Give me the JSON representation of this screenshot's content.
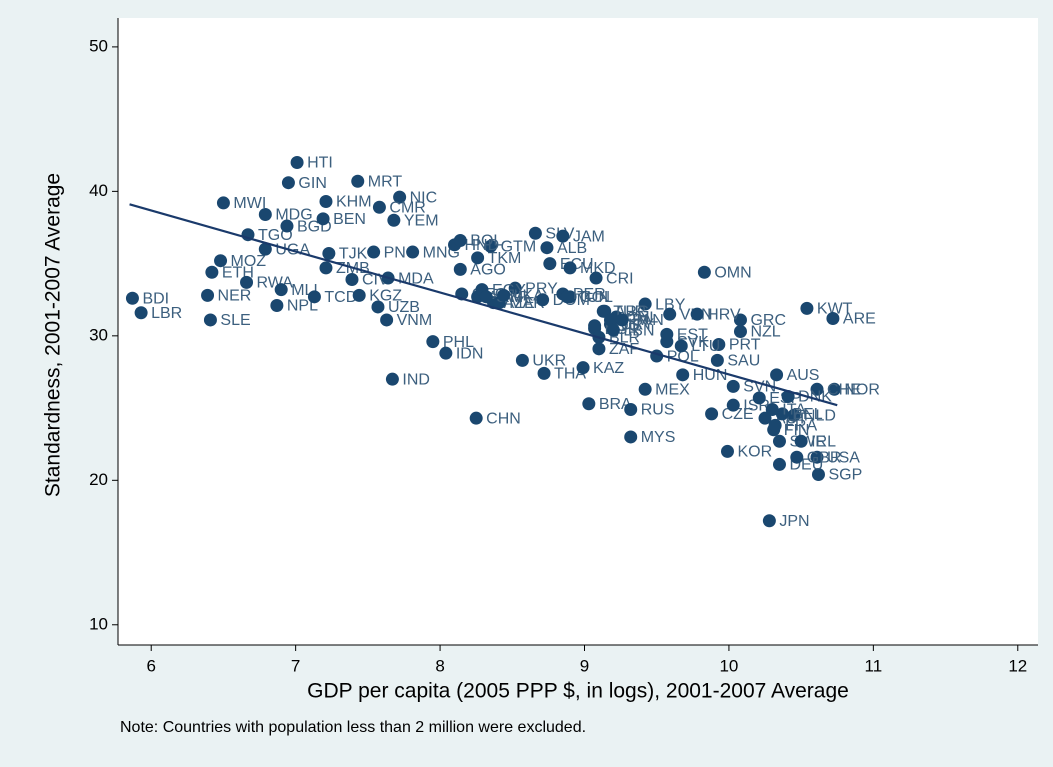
{
  "chart_data": {
    "type": "scatter",
    "xlabel": "GDP per capita (2005 PPP $, in logs), 2001-2007 Average",
    "ylabel": "Standardness, 2001-2007 Average",
    "note": "Note: Countries with population less than 2 million were excluded.",
    "xlim": [
      5.77,
      12.14
    ],
    "ylim": [
      8.6,
      52
    ],
    "xticks": [
      6,
      7,
      8,
      9,
      10,
      11,
      12
    ],
    "yticks": [
      10,
      20,
      30,
      40,
      50
    ],
    "color": "#1a476f",
    "line_color": "#1a3a6b",
    "point_labels": [
      "BDI",
      "LBR",
      "NER",
      "SLE",
      "ETH",
      "MOZ",
      "MWI",
      "TGO",
      "RWA",
      "MLI",
      "NPL",
      "MDG",
      "UGA",
      "BGD",
      "GIN",
      "HTI",
      "KHM",
      "MRT",
      "NIC",
      "YEM",
      "BEN",
      "TJK",
      "TCD",
      "KGZ",
      "CIV",
      "ZMB",
      "UZB",
      "VNM",
      "MDA",
      "PNG",
      "MNG",
      "CMR",
      "IND",
      "PHL",
      "IDN",
      "CHN",
      "AGO",
      "AZE",
      "TKM",
      "SLV",
      "JAM",
      "ALB",
      "ECU",
      "MKD",
      "CRI",
      "UKR",
      "THA",
      "KAZ",
      "BRA",
      "RUS",
      "MYS",
      "MEX",
      "LBY",
      "VEN",
      "POL",
      "HUN",
      "CZE",
      "OMN",
      "GRC",
      "NZL",
      "PRT",
      "SAU",
      "KOR",
      "JPN",
      "AUS",
      "ISR",
      "SVN",
      "ESP",
      "KWT",
      "ARE",
      "NOR",
      "SGP",
      "USA",
      "DEU",
      "GBR",
      "CHE",
      "FIN",
      "SWE",
      "IRL",
      "NLD",
      "DNK",
      "AUT",
      "FRA",
      "BEL",
      "ITA",
      "GTM",
      "HND",
      "BOL",
      "GEO",
      "ARM",
      "PRY",
      "MAR",
      "EGY",
      "SYR",
      "LKA",
      "DOM",
      "COL",
      "PER",
      "TUN",
      "ARG",
      "CHL",
      "URY",
      "TUR",
      "BGR",
      "ROU",
      "BLR",
      "ZAF",
      "IRN",
      "LBN",
      "PAN",
      "HRV",
      "SVK",
      "EST",
      "LTU"
    ],
    "x": [
      5.87,
      5.93,
      6.39,
      6.41,
      6.42,
      6.48,
      6.5,
      6.67,
      6.66,
      6.9,
      6.87,
      6.79,
      6.79,
      6.94,
      6.95,
      7.01,
      7.21,
      7.43,
      7.72,
      7.68,
      7.19,
      7.23,
      7.13,
      7.44,
      7.39,
      7.21,
      7.57,
      7.63,
      7.64,
      7.54,
      7.81,
      7.58,
      7.67,
      7.95,
      8.04,
      8.25,
      8.14,
      8.37,
      8.26,
      8.66,
      8.85,
      8.74,
      8.76,
      8.9,
      9.08,
      8.57,
      8.72,
      8.99,
      9.03,
      9.32,
      9.32,
      9.42,
      9.42,
      9.59,
      9.5,
      9.68,
      9.88,
      9.83,
      10.08,
      10.08,
      9.93,
      9.92,
      9.99,
      10.28,
      10.33,
      10.03,
      10.03,
      10.21,
      10.54,
      10.72,
      10.73,
      10.62,
      10.61,
      10.35,
      10.47,
      10.61,
      10.31,
      10.35,
      10.5,
      10.45,
      10.41,
      10.25,
      10.32,
      10.37,
      10.3,
      8.35,
      8.1,
      8.14,
      8.15,
      8.26,
      8.52,
      8.41,
      8.29,
      8.32,
      8.44,
      8.71,
      8.9,
      8.85,
      8.88,
      9.14,
      9.22,
      9.18,
      9.13,
      9.07,
      9.07,
      9.1,
      9.1,
      9.18,
      9.2,
      9.26,
      9.78,
      9.57,
      9.57,
      9.67
    ],
    "values": [
      32.6,
      31.6,
      32.8,
      31.1,
      34.4,
      35.2,
      39.2,
      37.0,
      33.7,
      33.2,
      32.1,
      38.4,
      36.0,
      37.6,
      40.6,
      42.0,
      39.3,
      40.7,
      39.6,
      38.0,
      38.1,
      35.7,
      32.7,
      32.8,
      33.9,
      34.7,
      32.0,
      31.1,
      34.0,
      35.8,
      35.8,
      38.9,
      27.0,
      29.6,
      28.8,
      24.3,
      34.6,
      32.3,
      35.4,
      37.1,
      36.9,
      36.1,
      35.0,
      34.7,
      34.0,
      28.3,
      27.4,
      27.8,
      25.3,
      24.9,
      23.0,
      26.3,
      32.2,
      31.5,
      28.6,
      27.3,
      24.6,
      34.4,
      31.1,
      30.3,
      29.4,
      28.3,
      22.0,
      17.2,
      27.3,
      25.2,
      26.5,
      25.7,
      31.9,
      31.2,
      26.3,
      20.4,
      21.6,
      21.1,
      21.6,
      26.3,
      23.5,
      22.7,
      22.7,
      24.5,
      25.8,
      24.3,
      23.8,
      24.6,
      24.9,
      36.2,
      36.3,
      36.6,
      32.9,
      32.7,
      33.3,
      32.3,
      33.2,
      32.7,
      32.8,
      32.5,
      32.7,
      32.9,
      32.7,
      31.7,
      31.3,
      30.8,
      31.7,
      30.5,
      30.7,
      29.9,
      29.1,
      31.1,
      30.4,
      31.1,
      31.5,
      29.6,
      30.1,
      29.3
    ],
    "fit_x": [
      5.85,
      10.75
    ],
    "fit_y": [
      39.1,
      25.2
    ]
  }
}
